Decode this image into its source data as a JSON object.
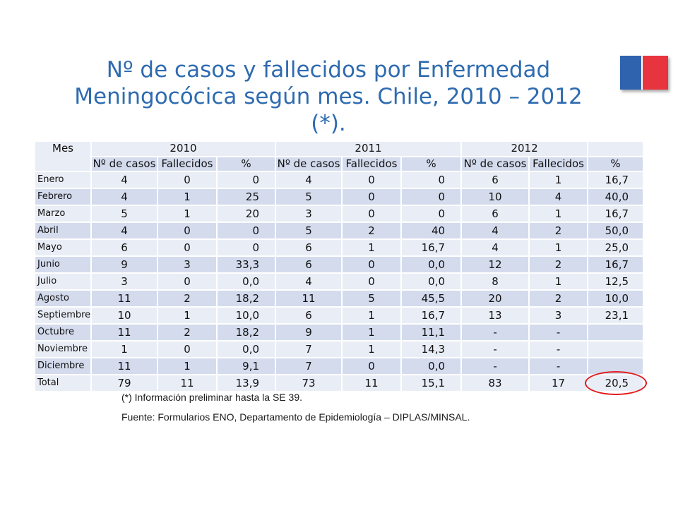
{
  "title": "Nº de casos y fallecidos por Enfermedad Meningocócica según mes. Chile, 2010 – 2012 (*).",
  "flag_colors": {
    "blue": "#2f63ae",
    "red": "#e8343f"
  },
  "table": {
    "mes_header": "Mes",
    "years": [
      "2010",
      "2011",
      "2012"
    ],
    "subheaders": [
      "Nº de casos",
      "Fallecidos",
      "%",
      "Nº de casos",
      "Fallecidos",
      "%",
      "Nº de casos",
      "Fallecidos",
      "%"
    ],
    "rows": [
      [
        "Enero",
        "4",
        "0",
        "0",
        "4",
        "0",
        "0",
        "6",
        "1",
        "16,7"
      ],
      [
        "Febrero",
        "4",
        "1",
        "25",
        "5",
        "0",
        "0",
        "10",
        "4",
        "40,0"
      ],
      [
        "Marzo",
        "5",
        "1",
        "20",
        "3",
        "0",
        "0",
        "6",
        "1",
        "16,7"
      ],
      [
        "Abril",
        "4",
        "0",
        "0",
        "5",
        "2",
        "40",
        "4",
        "2",
        "50,0"
      ],
      [
        "Mayo",
        "6",
        "0",
        "0",
        "6",
        "1",
        "16,7",
        "4",
        "1",
        "25,0"
      ],
      [
        "Junio",
        "9",
        "3",
        "33,3",
        "6",
        "0",
        "0,0",
        "12",
        "2",
        "16,7"
      ],
      [
        "Julio",
        "3",
        "0",
        "0,0",
        "4",
        "0",
        "0,0",
        "8",
        "1",
        "12,5"
      ],
      [
        "Agosto",
        "11",
        "2",
        "18,2",
        "11",
        "5",
        "45,5",
        "20",
        "2",
        "10,0"
      ],
      [
        "Septiembre",
        "10",
        "1",
        "10,0",
        "6",
        "1",
        "16,7",
        "13",
        "3",
        "23,1"
      ],
      [
        "Octubre",
        "11",
        "2",
        "18,2",
        "9",
        "1",
        "11,1",
        "-",
        "-",
        ""
      ],
      [
        "Noviembre",
        "1",
        "0",
        "0,0",
        "7",
        "1",
        "14,3",
        "-",
        "-",
        ""
      ],
      [
        "Diciembre",
        "11",
        "1",
        "9,1",
        "7",
        "0",
        "0,0",
        "-",
        "-",
        ""
      ],
      [
        "Total",
        "79",
        "11",
        "13,9",
        "73",
        "11",
        "15,1",
        "83",
        "17",
        "20,5"
      ]
    ]
  },
  "notes": {
    "preliminary": "(*) Información preliminar hasta la SE 39.",
    "source": "Fuente: Formularios ENO, Departamento de Epidemiología – DIPLAS/MINSAL."
  },
  "highlight_color": "#e11b1b"
}
